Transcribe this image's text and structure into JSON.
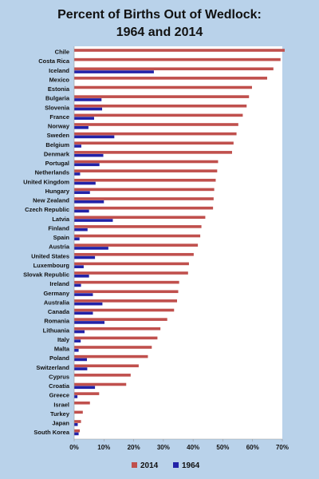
{
  "chart_data": {
    "type": "bar",
    "orientation": "horizontal",
    "title": [
      "Percent of Births Out of Wedlock:",
      "1964 and 2014"
    ],
    "xlim": [
      0,
      70
    ],
    "xticks": [
      0,
      10,
      20,
      30,
      40,
      50,
      60,
      70
    ],
    "xtick_labels": [
      "0%",
      "10%",
      "20%",
      "30%",
      "40%",
      "50%",
      "60%",
      "70%"
    ],
    "grid": false,
    "legend_position": "bottom",
    "categories": [
      "Chile",
      "Costa Rica",
      "Iceland",
      "Mexico",
      "Estonia",
      "Bulgaria",
      "Slovenia",
      "France",
      "Norway",
      "Sweden",
      "Belgium",
      "Denmark",
      "Portugal",
      "Netherlands",
      "United Kingdom",
      "Hungary",
      "New Zealand",
      "Czech Republic",
      "Latvia",
      "Finland",
      "Spain",
      "Austria",
      "United States",
      "Luxembourg",
      "Slovak Republic",
      "Ireland",
      "Germany",
      "Australia",
      "Canada",
      "Romania",
      "Lithuania",
      "Italy",
      "Malta",
      "Poland",
      "Switzerland",
      "Cyprus",
      "Croatia",
      "Greece",
      "Israel",
      "Turkey",
      "Japan",
      "South Korea"
    ],
    "series": [
      {
        "name": "2014",
        "color": "#c0504d",
        "values": [
          70.8,
          69.4,
          67,
          64.9,
          59.8,
          58.8,
          58,
          56.7,
          55.2,
          54.6,
          53.6,
          53.1,
          48.4,
          48.1,
          47.6,
          47.1,
          46.9,
          46.7,
          44.1,
          42.8,
          42.4,
          41.6,
          40.2,
          38.6,
          38.3,
          35.3,
          35.0,
          34.6,
          33.6,
          31.3,
          29.0,
          28.0,
          26.1,
          24.8,
          21.7,
          19.0,
          17.5,
          8.4,
          5.3,
          2.9,
          2.3,
          1.9
        ]
      },
      {
        "name": "1964",
        "color": "#2222a8",
        "values": [
          null,
          null,
          26.8,
          null,
          null,
          9.2,
          9.4,
          6.7,
          4.8,
          13.5,
          2.4,
          9.8,
          8.5,
          2.0,
          7.2,
          5.3,
          10.0,
          5.0,
          13.0,
          4.5,
          1.8,
          11.5,
          7.0,
          3.2,
          5.0,
          2.3,
          6.3,
          9.5,
          6.3,
          10.2,
          3.5,
          2.2,
          1.5,
          4.3,
          4.4,
          null,
          7.0,
          1.1,
          null,
          null,
          1.2,
          1.5
        ]
      }
    ],
    "legend": [
      {
        "label": "2014",
        "color": "#c0504d"
      },
      {
        "label": "1964",
        "color": "#2222a8"
      }
    ]
  }
}
